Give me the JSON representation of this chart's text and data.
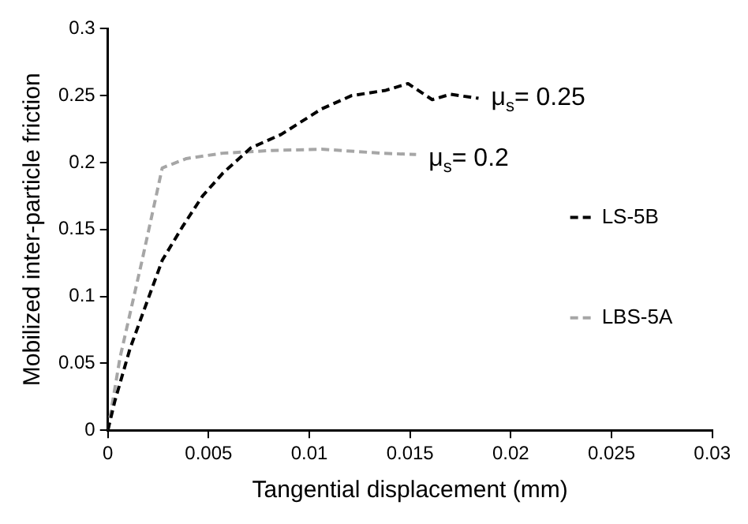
{
  "chart_data": {
    "type": "line",
    "xlabel": "Tangential displacement (mm)",
    "ylabel": "Mobilized inter-particle friction",
    "xlim": [
      0,
      0.03
    ],
    "xticks": [
      0,
      0.005,
      0.01,
      0.015,
      0.02,
      0.025,
      0.03
    ],
    "ylim": [
      0,
      0.3
    ],
    "yticks": [
      0,
      0.05,
      0.1,
      0.15,
      0.2,
      0.25,
      0.3
    ],
    "grid": false,
    "legend": "right",
    "line_style": "dashed",
    "marker": "none",
    "series": [
      {
        "name": "LS-5B",
        "color": "#000000",
        "x": [
          0,
          0.00035,
          0.0011,
          0.0018,
          0.0027,
          0.0037,
          0.0047,
          0.0057,
          0.0071,
          0.0086,
          0.0106,
          0.0121,
          0.0138,
          0.0149,
          0.0161,
          0.017,
          0.0184
        ],
        "values": [
          0,
          0.022,
          0.061,
          0.09,
          0.127,
          0.152,
          0.175,
          0.192,
          0.211,
          0.221,
          0.24,
          0.25,
          0.254,
          0.259,
          0.247,
          0.251,
          0.248
        ]
      },
      {
        "name": "LBS-5A",
        "color": "#a6a6a6",
        "x": [
          0,
          0.0006,
          0.0017,
          0.0027,
          0.0039,
          0.0057,
          0.0081,
          0.0106,
          0.0136,
          0.0153
        ],
        "values": [
          0,
          0.054,
          0.127,
          0.196,
          0.203,
          0.207,
          0.209,
          0.21,
          0.207,
          0.206
        ]
      }
    ],
    "annotations": [
      {
        "text": "μ$_{s}$= 0.25",
        "x": 0.0184,
        "y": 0.25
      },
      {
        "text": "μ$_{s}$= 0.2",
        "x": 0.0153,
        "y": 0.205
      }
    ]
  }
}
